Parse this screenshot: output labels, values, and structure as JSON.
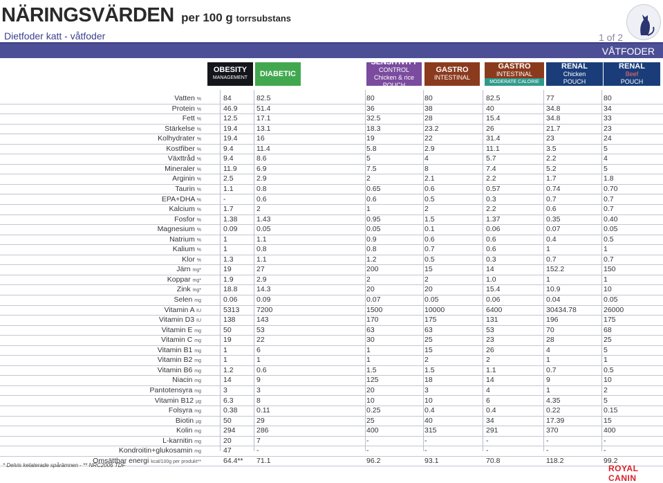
{
  "header": {
    "title_big": "NÄRINGSVÄRDEN",
    "title_small_a": "per 100 g",
    "title_small_b": "torrsubstans",
    "subtitle": "Dietfoder katt - våtfoder",
    "page": "1 of 2",
    "section": "VÅTFODER"
  },
  "products": [
    {
      "line1": "OBESITY",
      "line2": "MANAGEMENT",
      "line3": "",
      "line4": "",
      "color": "#15151c"
    },
    {
      "line1": "DIABETIC",
      "line2": "",
      "line3": "",
      "line4": "",
      "color": "#41a84f"
    },
    {
      "line1": "SENSITIVITY",
      "line2": "CONTROL",
      "line3": "Chicken & rice",
      "line4": "POUCH",
      "color": "#7a4b9e"
    },
    {
      "line1": "GASTRO",
      "line2": "INTESTINAL",
      "line3": "",
      "line4": "",
      "color": "#8a3b1e"
    },
    {
      "line1": "GASTRO",
      "line2": "INTESTINAL",
      "line3": "MODERATE CALORIE",
      "line4": "",
      "color": "#8a3b1e"
    },
    {
      "line1": "RENAL",
      "line2": "Chicken",
      "line3": "POUCH",
      "line4": "",
      "color": "#1a3d7a"
    },
    {
      "line1": "RENAL",
      "line2": "Beef",
      "line3": "POUCH",
      "line4": "",
      "color": "#1a3d7a"
    }
  ],
  "rows": [
    {
      "label": "Vatten",
      "unit": "%",
      "values": [
        "84",
        "82.5",
        "80",
        "80",
        "82.5",
        "77",
        "80"
      ]
    },
    {
      "label": "Protein",
      "unit": "%",
      "values": [
        "46.9",
        "51.4",
        "36",
        "38",
        "40",
        "34.8",
        "34"
      ]
    },
    {
      "label": "Fett",
      "unit": "%",
      "values": [
        "12.5",
        "17.1",
        "32.5",
        "28",
        "15.4",
        "34.8",
        "33"
      ]
    },
    {
      "label": "Stärkelse",
      "unit": "%",
      "values": [
        "19.4",
        "13.1",
        "18.3",
        "23.2",
        "26",
        "21.7",
        "23"
      ]
    },
    {
      "label": "Kolhydrater",
      "unit": "%",
      "values": [
        "19.4",
        "16",
        "19",
        "22",
        "31.4",
        "23",
        "24"
      ]
    },
    {
      "label": "Kostfiber",
      "unit": "%",
      "values": [
        "9.4",
        "11.4",
        "5.8",
        "2.9",
        "11.1",
        "3.5",
        "5"
      ]
    },
    {
      "label": "Växttråd",
      "unit": "%",
      "values": [
        "9.4",
        "8.6",
        "5",
        "4",
        "5.7",
        "2.2",
        "4"
      ]
    },
    {
      "label": "Mineraler",
      "unit": "%",
      "values": [
        "11.9",
        "6.9",
        "7.5",
        "8",
        "7.4",
        "5.2",
        "5"
      ]
    },
    {
      "label": "Arginin",
      "unit": "%",
      "values": [
        "2.5",
        "2.9",
        "2",
        "2.1",
        "2.2",
        "1.7",
        "1.8"
      ]
    },
    {
      "label": "Taurin",
      "unit": "%",
      "values": [
        "1.1",
        "0.8",
        "0.65",
        "0.6",
        "0.57",
        "0.74",
        "0.70"
      ]
    },
    {
      "label": "EPA+DHA",
      "unit": "%",
      "values": [
        "-",
        "0.6",
        "0.6",
        "0.5",
        "0.3",
        "0.7",
        "0.7"
      ]
    },
    {
      "label": "Kalcium",
      "unit": "%",
      "values": [
        "1.7",
        "2",
        "1",
        "2",
        "2.2",
        "0.6",
        "0.7"
      ]
    },
    {
      "label": "Fosfor",
      "unit": "%",
      "values": [
        "1.38",
        "1.43",
        "0.95",
        "1.5",
        "1.37",
        "0.35",
        "0.40"
      ]
    },
    {
      "label": "Magnesium",
      "unit": "%",
      "values": [
        "0.09",
        "0.05",
        "0.05",
        "0.1",
        "0.06",
        "0.07",
        "0.05"
      ]
    },
    {
      "label": "Natrium",
      "unit": "%",
      "values": [
        "1",
        "1.1",
        "0.9",
        "0.6",
        "0.6",
        "0.4",
        "0.5"
      ]
    },
    {
      "label": "Kalium",
      "unit": "%",
      "values": [
        "1",
        "0.8",
        "0.8",
        "0.7",
        "0.6",
        "1",
        "1"
      ]
    },
    {
      "label": "Klor",
      "unit": "%",
      "values": [
        "1.3",
        "1.1",
        "1.2",
        "0.5",
        "0.3",
        "0.7",
        "0.7"
      ]
    },
    {
      "label": "Järn",
      "unit": "mg*",
      "values": [
        "19",
        "27",
        "200",
        "15",
        "14",
        "152.2",
        "150"
      ]
    },
    {
      "label": "Koppar",
      "unit": "mg*",
      "values": [
        "1.9",
        "2.9",
        "2",
        "2",
        "1.0",
        "1",
        "1"
      ]
    },
    {
      "label": "Zink",
      "unit": "mg*",
      "values": [
        "18.8",
        "14.3",
        "20",
        "20",
        "15.4",
        "10.9",
        "10"
      ]
    },
    {
      "label": "Selen",
      "unit": "mg",
      "values": [
        "0.06",
        "0.09",
        "0.07",
        "0.05",
        "0.06",
        "0.04",
        "0.05"
      ]
    },
    {
      "label": "Vitamin A",
      "unit": "IU",
      "values": [
        "5313",
        "7200",
        "1500",
        "10000",
        "6400",
        "30434.78",
        "26000"
      ]
    },
    {
      "label": "Vitamin D3",
      "unit": "IU",
      "values": [
        "138",
        "143",
        "170",
        "175",
        "131",
        "196",
        "175"
      ]
    },
    {
      "label": "Vitamin E",
      "unit": "mg",
      "values": [
        "50",
        "53",
        "63",
        "63",
        "53",
        "70",
        "68"
      ]
    },
    {
      "label": "Vitamin C",
      "unit": "mg",
      "values": [
        "19",
        "22",
        "30",
        "25",
        "23",
        "28",
        "25"
      ]
    },
    {
      "label": "Vitamin B1",
      "unit": "mg",
      "values": [
        "1",
        "6",
        "1",
        "15",
        "26",
        "4",
        "5"
      ]
    },
    {
      "label": "Vitamin B2",
      "unit": "mg",
      "values": [
        "1",
        "1",
        "1",
        "2",
        "2",
        "1",
        "1"
      ]
    },
    {
      "label": "Vitamin B6",
      "unit": "mg",
      "values": [
        "1.2",
        "0.6",
        "1.5",
        "1.5",
        "1.1",
        "0.7",
        "0.5"
      ]
    },
    {
      "label": "Niacin",
      "unit": "mg",
      "values": [
        "14",
        "9",
        "125",
        "18",
        "14",
        "9",
        "10"
      ]
    },
    {
      "label": "Pantotensyra",
      "unit": "mg",
      "values": [
        "3",
        "3",
        "20",
        "3",
        "4",
        "1",
        "2"
      ]
    },
    {
      "label": "Vitamin B12",
      "unit": "µg",
      "values": [
        "6.3",
        "8",
        "10",
        "10",
        "6",
        "4.35",
        "5"
      ]
    },
    {
      "label": "Folsyra",
      "unit": "mg",
      "values": [
        "0.38",
        "0.11",
        "0.25",
        "0.4",
        "0.4",
        "0.22",
        "0.15"
      ]
    },
    {
      "label": "Biotin",
      "unit": "µg",
      "values": [
        "50",
        "29",
        "25",
        "40",
        "34",
        "17.39",
        "15"
      ]
    },
    {
      "label": "Kolin",
      "unit": "mg",
      "values": [
        "294",
        "286",
        "400",
        "315",
        "291",
        "370",
        "400"
      ]
    },
    {
      "label": "L-karnitin",
      "unit": "mg",
      "values": [
        "20",
        "7",
        "-",
        "-",
        "-",
        "-",
        "-"
      ]
    },
    {
      "label": "Kondroitin+glukosamin",
      "unit": "mg",
      "values": [
        "47",
        "-",
        "-",
        "-",
        "-",
        "-",
        "-"
      ]
    },
    {
      "label": "Omsättbar energi",
      "unit": "kcal/100g per produkt**",
      "values": [
        "64.4**",
        "71.1",
        "96.2",
        "93.1",
        "70.8",
        "118.2",
        "99.2"
      ]
    }
  ],
  "footer": {
    "note": "* Delvis kelaterade spårämnen - ** NRC2006 TDF",
    "brand": "ROYAL CANIN"
  },
  "colors": {
    "accent": "#4d4f96",
    "line": "#3b3e84",
    "beef": "#d9202a",
    "gi_subtitle": "#2f9a8c"
  }
}
